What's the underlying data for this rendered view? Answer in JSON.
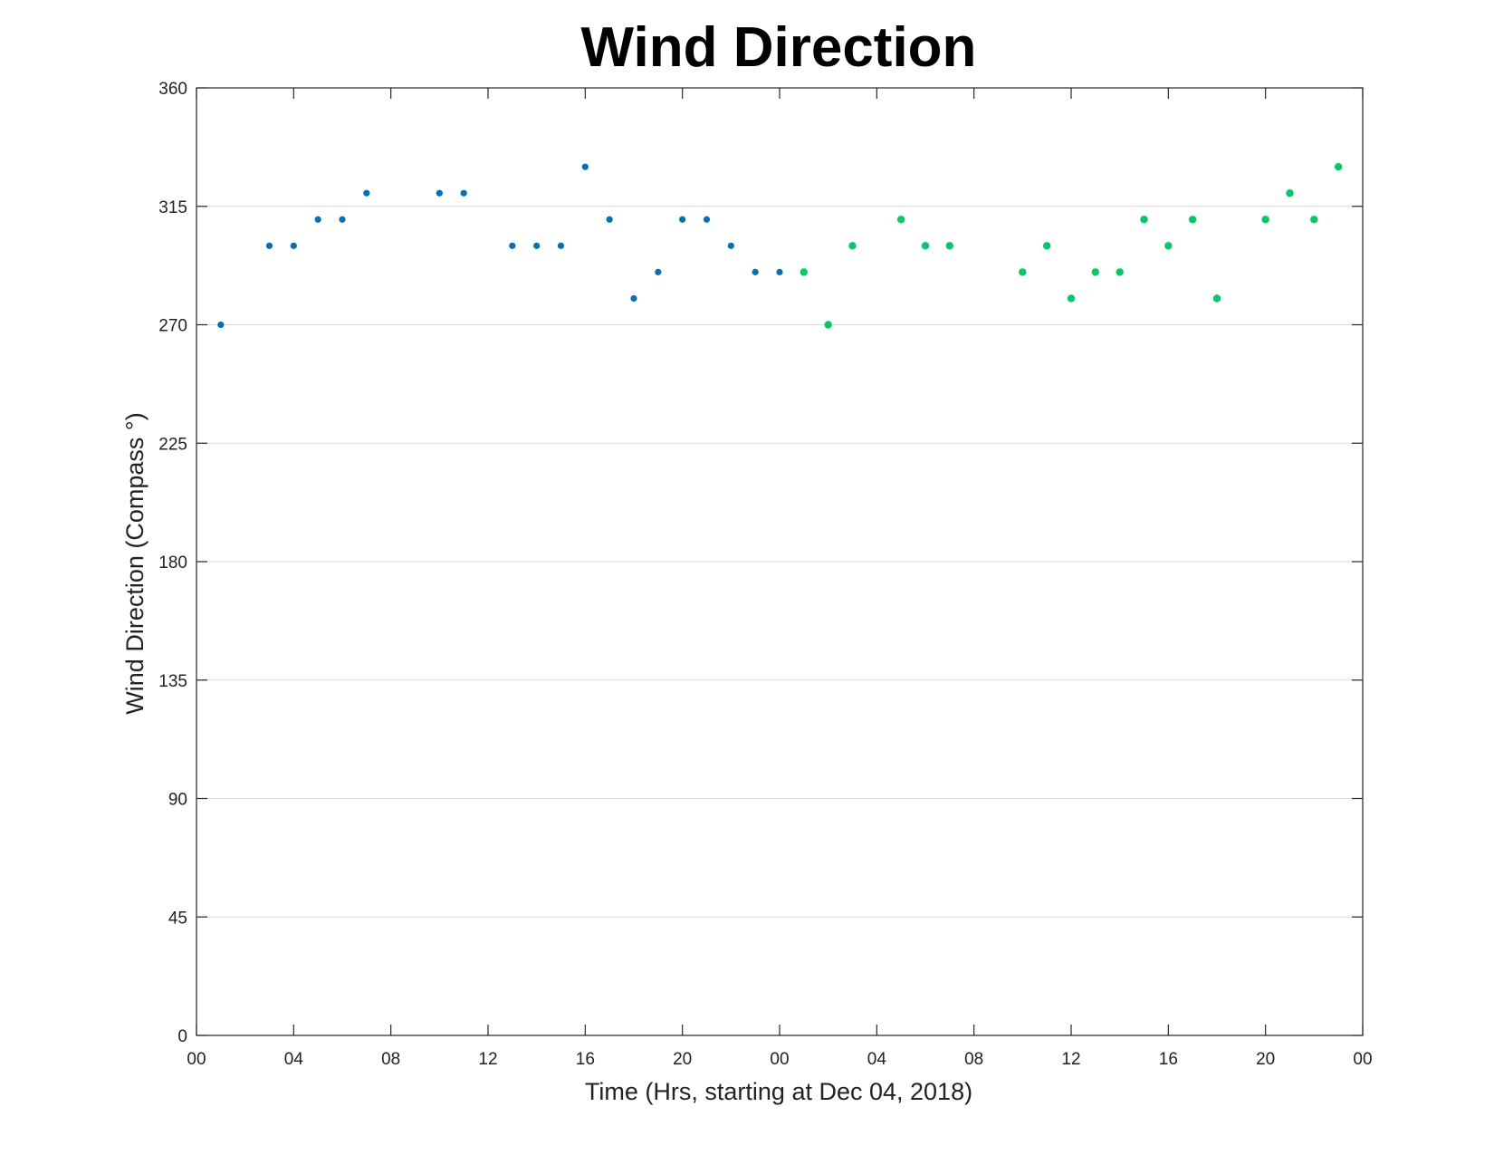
{
  "chart_data": {
    "type": "scatter",
    "title": "Wind Direction",
    "xlabel": "Time (Hrs, starting at Dec 04, 2018)",
    "ylabel": "Wind Direction (Compass °)",
    "x_unit": "hours",
    "xlim": [
      0,
      48
    ],
    "ylim": [
      0,
      360
    ],
    "x_tick_values": [
      0,
      4,
      8,
      12,
      16,
      20,
      24,
      28,
      32,
      36,
      40,
      44,
      48
    ],
    "x_tick_labels": [
      "00",
      "04",
      "08",
      "12",
      "16",
      "20",
      "00",
      "04",
      "08",
      "12",
      "16",
      "20",
      "00"
    ],
    "y_ticks": [
      0,
      45,
      90,
      135,
      180,
      225,
      270,
      315,
      360
    ],
    "grid": "horizontal",
    "series": [
      {
        "color": "#0072BD",
        "marker": "dot",
        "points": [
          {
            "x": 1,
            "y": 270
          },
          {
            "x": 3,
            "y": 300
          },
          {
            "x": 4,
            "y": 300
          },
          {
            "x": 5,
            "y": 310
          },
          {
            "x": 6,
            "y": 310
          },
          {
            "x": 7,
            "y": 320
          },
          {
            "x": 10,
            "y": 320
          },
          {
            "x": 11,
            "y": 320
          },
          {
            "x": 13,
            "y": 300
          },
          {
            "x": 14,
            "y": 300
          },
          {
            "x": 15,
            "y": 300
          },
          {
            "x": 16,
            "y": 330
          },
          {
            "x": 17,
            "y": 310
          },
          {
            "x": 18,
            "y": 280
          },
          {
            "x": 19,
            "y": 290
          },
          {
            "x": 20,
            "y": 310
          },
          {
            "x": 21,
            "y": 310
          },
          {
            "x": 22,
            "y": 300
          },
          {
            "x": 23,
            "y": 290
          },
          {
            "x": 24,
            "y": 290
          }
        ]
      },
      {
        "color": "#00CC66",
        "marker": "dot",
        "points": [
          {
            "x": 25,
            "y": 290
          },
          {
            "x": 26,
            "y": 270
          },
          {
            "x": 27,
            "y": 300
          },
          {
            "x": 29,
            "y": 310
          },
          {
            "x": 30,
            "y": 300
          },
          {
            "x": 31,
            "y": 300
          },
          {
            "x": 34,
            "y": 290
          },
          {
            "x": 35,
            "y": 300
          },
          {
            "x": 36,
            "y": 280
          },
          {
            "x": 37,
            "y": 290
          },
          {
            "x": 38,
            "y": 290
          },
          {
            "x": 39,
            "y": 310
          },
          {
            "x": 40,
            "y": 300
          },
          {
            "x": 41,
            "y": 310
          },
          {
            "x": 42,
            "y": 280
          },
          {
            "x": 44,
            "y": 310
          },
          {
            "x": 45,
            "y": 320
          },
          {
            "x": 46,
            "y": 310
          },
          {
            "x": 47,
            "y": 330
          }
        ]
      }
    ]
  }
}
